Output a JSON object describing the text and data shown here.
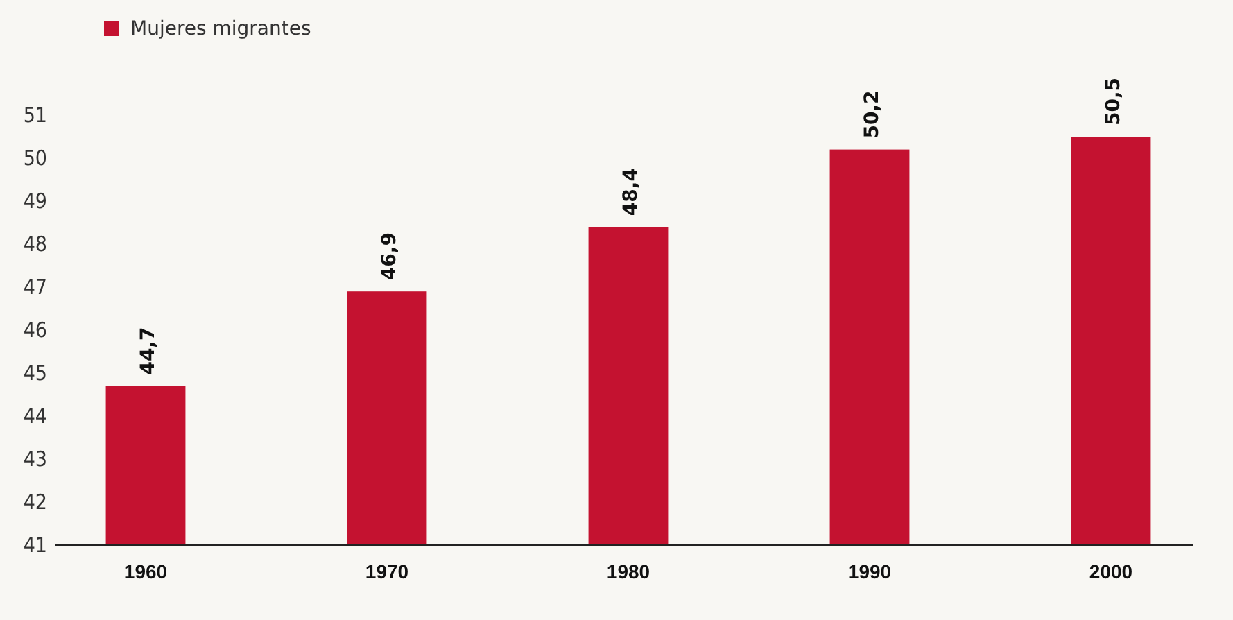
{
  "chart_data": {
    "type": "bar",
    "categories": [
      "1960",
      "1970",
      "1980",
      "1990",
      "2000"
    ],
    "series": [
      {
        "name": "Mujeres migrantes",
        "color": "#c41230",
        "values": [
          44.7,
          46.9,
          48.4,
          50.2,
          50.5
        ],
        "value_labels": [
          "44,7",
          "46,9",
          "48,4",
          "50,2",
          "50,5"
        ]
      }
    ],
    "ylim": [
      41,
      51
    ],
    "yticks": [
      41,
      42,
      43,
      44,
      45,
      46,
      47,
      48,
      49,
      50,
      51
    ],
    "grid": false,
    "legend": "top left"
  }
}
